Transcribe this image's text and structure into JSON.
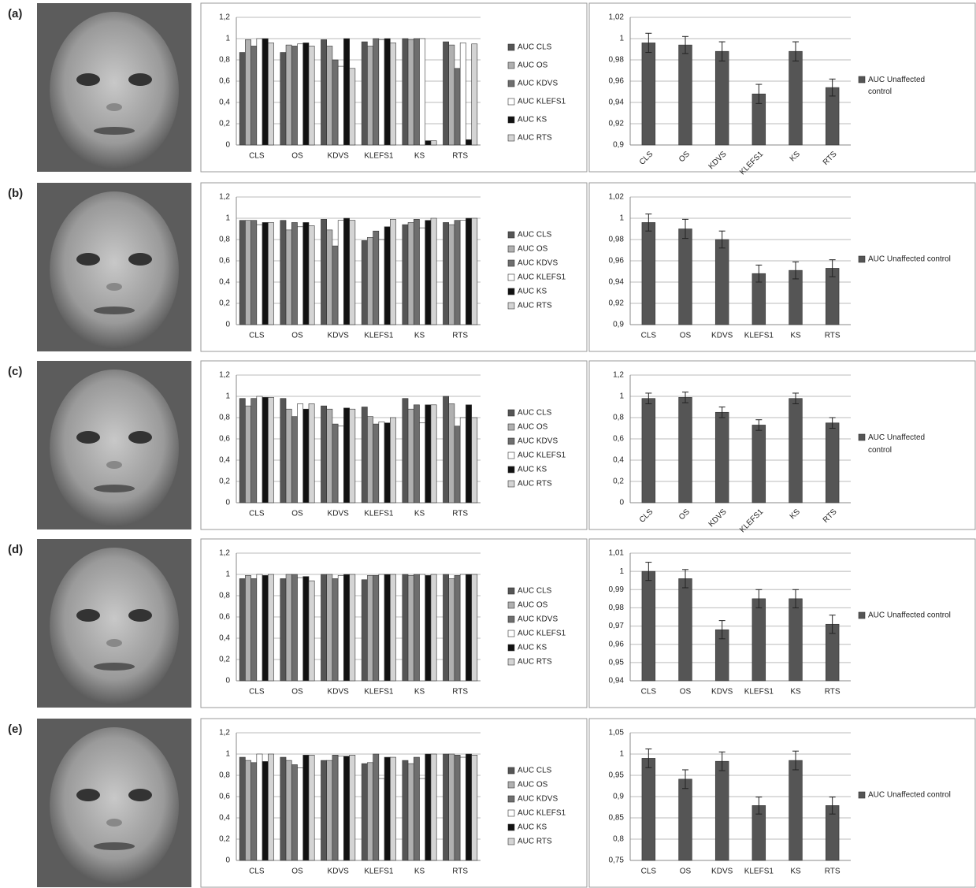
{
  "panel_labels": [
    "(a)",
    "(b)",
    "(c)",
    "(d)",
    "(e)"
  ],
  "chart_data": [
    {
      "type": "bar",
      "categories": [
        "CLS",
        "OS",
        "KDVS",
        "KLEFS1",
        "KS",
        "RTS"
      ],
      "series": [
        {
          "name": "AUC CLS",
          "color": "#555555",
          "values": [
            0.87,
            0.87,
            0.99,
            0.97,
            1.0,
            0.97
          ]
        },
        {
          "name": "AUC OS",
          "color": "#b0b0b0",
          "values": [
            0.99,
            0.94,
            0.93,
            0.93,
            0.99,
            0.94
          ]
        },
        {
          "name": "AUC KDVS",
          "color": "#6e6e6e",
          "values": [
            0.93,
            0.93,
            0.8,
            1.0,
            1.0,
            0.72
          ]
        },
        {
          "name": "AUC KLEFS1",
          "color": "#ffffff",
          "values": [
            1.0,
            0.95,
            0.74,
            0.99,
            1.0,
            0.96
          ]
        },
        {
          "name": "AUC KS",
          "color": "#111111",
          "values": [
            1.0,
            0.96,
            1.0,
            1.0,
            0.04,
            0.05
          ]
        },
        {
          "name": "AUC RTS",
          "color": "#d4d4d4",
          "values": [
            0.96,
            0.93,
            0.72,
            0.96,
            0.04,
            0.95
          ]
        }
      ],
      "ylim": [
        0,
        1.2
      ],
      "yticks": [
        0,
        {
          "value": 0.2,
          "label": "0,2"
        },
        {
          "value": 0.4,
          "label": "0,4"
        },
        {
          "value": 0.6,
          "label": "0,6"
        },
        {
          "value": 0.8,
          "label": "0,8"
        },
        1,
        {
          "value": 1.2,
          "label": "1,2"
        }
      ],
      "grid": true
    },
    {
      "type": "bar",
      "categories": [
        "CLS",
        "OS",
        "KDVS",
        "KLEFS1",
        "KS",
        "RTS"
      ],
      "series": [
        {
          "name": "AUC Unaffected control",
          "color": "#555555",
          "values": [
            0.996,
            0.994,
            0.988,
            0.948,
            0.988,
            0.954
          ],
          "errors": [
            0.009,
            0.008,
            0.009,
            0.009,
            0.009,
            0.008
          ]
        }
      ],
      "ylim": [
        0.9,
        1.02
      ],
      "yticks": [
        {
          "value": 0.9,
          "label": "0,9"
        },
        {
          "value": 0.92,
          "label": "0,92"
        },
        {
          "value": 0.94,
          "label": "0,94"
        },
        {
          "value": 0.96,
          "label": "0,96"
        },
        {
          "value": 0.98,
          "label": "0,98"
        },
        1,
        {
          "value": 1.02,
          "label": "1,02"
        }
      ],
      "grid": true
    },
    {
      "type": "bar",
      "categories": [
        "CLS",
        "OS",
        "KDVS",
        "KLEFS1",
        "KS",
        "RTS"
      ],
      "series": [
        {
          "name": "AUC CLS",
          "color": "#555555",
          "values": [
            0.98,
            0.98,
            0.99,
            0.79,
            0.94,
            0.96
          ]
        },
        {
          "name": "AUC OS",
          "color": "#b0b0b0",
          "values": [
            0.98,
            0.89,
            0.89,
            0.82,
            0.96,
            0.94
          ]
        },
        {
          "name": "AUC KDVS",
          "color": "#6e6e6e",
          "values": [
            0.98,
            0.96,
            0.74,
            0.88,
            0.99,
            0.98
          ]
        },
        {
          "name": "AUC KLEFS1",
          "color": "#ffffff",
          "values": [
            0.94,
            0.92,
            0.98,
            0.8,
            0.91,
            0.98
          ]
        },
        {
          "name": "AUC KS",
          "color": "#111111",
          "values": [
            0.96,
            0.96,
            1.0,
            0.92,
            0.98,
            1.0
          ]
        },
        {
          "name": "AUC RTS",
          "color": "#d4d4d4",
          "values": [
            0.96,
            0.93,
            0.98,
            0.99,
            1.0,
            1.0
          ]
        }
      ],
      "ylim": [
        0,
        1.2
      ],
      "yticks": [
        0,
        {
          "value": 0.2,
          "label": "0,2"
        },
        {
          "value": 0.4,
          "label": "0,4"
        },
        {
          "value": 0.6,
          "label": "0,6"
        },
        {
          "value": 0.8,
          "label": "0,8"
        },
        1,
        {
          "value": 1.2,
          "label": "1,2"
        }
      ],
      "grid": true
    },
    {
      "type": "bar",
      "categories": [
        "CLS",
        "OS",
        "KDVS",
        "KLEFS1",
        "KS",
        "RTS"
      ],
      "series": [
        {
          "name": "AUC Unaffected control",
          "color": "#555555",
          "values": [
            0.996,
            0.99,
            0.98,
            0.948,
            0.951,
            0.953
          ],
          "errors": [
            0.008,
            0.009,
            0.008,
            0.008,
            0.008,
            0.008
          ]
        }
      ],
      "ylim": [
        0.9,
        1.02
      ],
      "yticks": [
        {
          "value": 0.9,
          "label": "0,9"
        },
        {
          "value": 0.92,
          "label": "0,92"
        },
        {
          "value": 0.94,
          "label": "0,94"
        },
        {
          "value": 0.96,
          "label": "0,96"
        },
        {
          "value": 0.98,
          "label": "0,98"
        },
        1,
        {
          "value": 1.02,
          "label": "1,02"
        }
      ],
      "grid": true
    },
    {
      "type": "bar",
      "categories": [
        "CLS",
        "OS",
        "KDVS",
        "KLEFS1",
        "KS",
        "RTS"
      ],
      "series": [
        {
          "name": "AUC CLS",
          "color": "#555555",
          "values": [
            0.98,
            0.98,
            0.91,
            0.9,
            0.98,
            1.0
          ]
        },
        {
          "name": "AUC OS",
          "color": "#b0b0b0",
          "values": [
            0.91,
            0.88,
            0.88,
            0.81,
            0.88,
            0.93
          ]
        },
        {
          "name": "AUC KDVS",
          "color": "#6e6e6e",
          "values": [
            0.98,
            0.81,
            0.74,
            0.74,
            0.92,
            0.72
          ]
        },
        {
          "name": "AUC KLEFS1",
          "color": "#ffffff",
          "values": [
            1.0,
            0.93,
            0.72,
            0.76,
            0.75,
            0.8
          ]
        },
        {
          "name": "AUC KS",
          "color": "#111111",
          "values": [
            0.99,
            0.88,
            0.89,
            0.75,
            0.92,
            0.92
          ]
        },
        {
          "name": "AUC RTS",
          "color": "#d4d4d4",
          "values": [
            0.99,
            0.93,
            0.88,
            0.8,
            0.92,
            0.8
          ]
        }
      ],
      "ylim": [
        0,
        1.2
      ],
      "yticks": [
        0,
        {
          "value": 0.2,
          "label": "0,2"
        },
        {
          "value": 0.4,
          "label": "0,4"
        },
        {
          "value": 0.6,
          "label": "0,6"
        },
        {
          "value": 0.8,
          "label": "0,8"
        },
        1,
        {
          "value": 1.2,
          "label": "1,2"
        }
      ],
      "grid": true
    },
    {
      "type": "bar",
      "categories": [
        "CLS",
        "OS",
        "KDVS",
        "KLEFS1",
        "KS",
        "RTS"
      ],
      "series": [
        {
          "name": "AUC Unaffected control",
          "color": "#555555",
          "values": [
            0.98,
            0.99,
            0.85,
            0.73,
            0.98,
            0.75
          ],
          "errors": [
            0.05,
            0.05,
            0.05,
            0.05,
            0.05,
            0.05
          ]
        }
      ],
      "ylim": [
        0,
        1.2
      ],
      "yticks": [
        0,
        {
          "value": 0.2,
          "label": "0,2"
        },
        {
          "value": 0.4,
          "label": "0,4"
        },
        {
          "value": 0.6,
          "label": "0,6"
        },
        {
          "value": 0.8,
          "label": "0,8"
        },
        1,
        {
          "value": 1.2,
          "label": "1,2"
        }
      ],
      "grid": true
    },
    {
      "type": "bar",
      "categories": [
        "CLS",
        "OS",
        "KDVS",
        "KLEFS1",
        "KS",
        "RTS"
      ],
      "series": [
        {
          "name": "AUC CLS",
          "color": "#555555",
          "values": [
            0.96,
            0.96,
            1.0,
            0.95,
            1.0,
            1.0
          ]
        },
        {
          "name": "AUC OS",
          "color": "#b0b0b0",
          "values": [
            0.99,
            1.0,
            1.0,
            0.99,
            0.99,
            0.96
          ]
        },
        {
          "name": "AUC KDVS",
          "color": "#6e6e6e",
          "values": [
            0.96,
            1.0,
            0.96,
            0.99,
            1.0,
            0.99
          ]
        },
        {
          "name": "AUC KLEFS1",
          "color": "#ffffff",
          "values": [
            1.0,
            0.97,
            0.99,
            1.0,
            1.0,
            1.0
          ]
        },
        {
          "name": "AUC KS",
          "color": "#111111",
          "values": [
            0.99,
            0.98,
            1.0,
            1.0,
            0.99,
            1.0
          ]
        },
        {
          "name": "AUC RTS",
          "color": "#d4d4d4",
          "values": [
            1.0,
            0.94,
            1.0,
            1.0,
            1.0,
            1.0
          ]
        }
      ],
      "ylim": [
        0,
        1.2
      ],
      "yticks": [
        0,
        {
          "value": 0.2,
          "label": "0,2"
        },
        {
          "value": 0.4,
          "label": "0,4"
        },
        {
          "value": 0.6,
          "label": "0,6"
        },
        {
          "value": 0.8,
          "label": "0,8"
        },
        1,
        {
          "value": 1.2,
          "label": "1,2"
        }
      ],
      "grid": true
    },
    {
      "type": "bar",
      "categories": [
        "CLS",
        "OS",
        "KDVS",
        "KLEFS1",
        "KS",
        "RTS"
      ],
      "series": [
        {
          "name": "AUC Unaffected control",
          "color": "#555555",
          "values": [
            1.0,
            0.996,
            0.968,
            0.985,
            0.985,
            0.971
          ],
          "errors": [
            0.005,
            0.005,
            0.005,
            0.005,
            0.005,
            0.005
          ]
        }
      ],
      "ylim": [
        0.94,
        1.01
      ],
      "yticks": [
        {
          "value": 0.94,
          "label": "0,94"
        },
        {
          "value": 0.95,
          "label": "0,95"
        },
        {
          "value": 0.96,
          "label": "0,96"
        },
        {
          "value": 0.97,
          "label": "0,97"
        },
        {
          "value": 0.98,
          "label": "0,98"
        },
        {
          "value": 0.99,
          "label": "0,99"
        },
        1,
        {
          "value": 1.01,
          "label": "1,01"
        }
      ],
      "grid": true
    },
    {
      "type": "bar",
      "categories": [
        "CLS",
        "OS",
        "KDVS",
        "KLEFS1",
        "KS",
        "RTS"
      ],
      "series": [
        {
          "name": "AUC CLS",
          "color": "#555555",
          "values": [
            0.97,
            0.97,
            0.94,
            0.91,
            0.94,
            1.0
          ]
        },
        {
          "name": "AUC OS",
          "color": "#b0b0b0",
          "values": [
            0.94,
            0.94,
            0.94,
            0.92,
            0.91,
            1.0
          ]
        },
        {
          "name": "AUC KDVS",
          "color": "#6e6e6e",
          "values": [
            0.92,
            0.9,
            0.99,
            1.0,
            0.97,
            0.99
          ]
        },
        {
          "name": "AUC KLEFS1",
          "color": "#ffffff",
          "values": [
            1.0,
            0.87,
            0.98,
            0.77,
            0.77,
            0.97
          ]
        },
        {
          "name": "AUC KS",
          "color": "#111111",
          "values": [
            0.93,
            0.99,
            0.98,
            0.97,
            1.0,
            1.0
          ]
        },
        {
          "name": "AUC RTS",
          "color": "#d4d4d4",
          "values": [
            1.0,
            0.99,
            0.99,
            0.97,
            1.0,
            0.99
          ]
        }
      ],
      "ylim": [
        0,
        1.2
      ],
      "yticks": [
        0,
        {
          "value": 0.2,
          "label": "0,2"
        },
        {
          "value": 0.4,
          "label": "0,4"
        },
        {
          "value": 0.6,
          "label": "0,6"
        },
        {
          "value": 0.8,
          "label": "0,8"
        },
        1,
        {
          "value": 1.2,
          "label": "1,2"
        }
      ],
      "grid": true
    },
    {
      "type": "bar",
      "categories": [
        "CLS",
        "OS",
        "KDVS",
        "KLEFS1",
        "KS",
        "RTS"
      ],
      "series": [
        {
          "name": "AUC Unaffected control",
          "color": "#555555",
          "values": [
            0.99,
            0.941,
            0.983,
            0.879,
            0.985,
            0.879
          ],
          "errors": [
            0.022,
            0.022,
            0.022,
            0.02,
            0.022,
            0.02
          ]
        }
      ],
      "ylim": [
        0.75,
        1.05
      ],
      "yticks": [
        {
          "value": 0.75,
          "label": "0,75"
        },
        {
          "value": 0.8,
          "label": "0,8"
        },
        {
          "value": 0.85,
          "label": "0,85"
        },
        {
          "value": 0.9,
          "label": "0,9"
        },
        {
          "value": 0.95,
          "label": "0,95"
        },
        1,
        {
          "value": 1.05,
          "label": "1,05"
        }
      ],
      "grid": true
    }
  ]
}
